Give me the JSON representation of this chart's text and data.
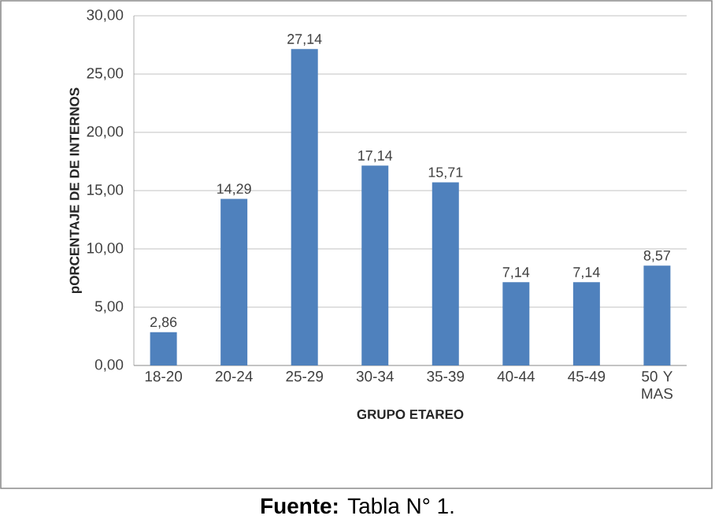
{
  "chart_data": {
    "type": "bar",
    "xlabel": "GRUPO ETAREO",
    "ylabel": "pORCENTAJE DE DE INTERNOS",
    "categories": [
      "18-20",
      "20-24",
      "25-29",
      "30-34",
      "35-39",
      "40-44",
      "45-49",
      "50 Y MAS"
    ],
    "values": [
      2.86,
      14.29,
      27.14,
      17.14,
      15.71,
      7.14,
      7.14,
      8.57
    ],
    "value_labels": [
      "2,86",
      "14,29",
      "27,14",
      "17,14",
      "15,71",
      "7,14",
      "7,14",
      "8,57"
    ],
    "color": "#4f81bd",
    "ylim": [
      0,
      30
    ],
    "yticks": [
      {
        "value": 0,
        "label": "0,00"
      },
      {
        "value": 5,
        "label": "5,00"
      },
      {
        "value": 10,
        "label": "10,00"
      },
      {
        "value": 15,
        "label": "15,00"
      },
      {
        "value": 20,
        "label": "20,00"
      },
      {
        "value": 25,
        "label": "25,00"
      },
      {
        "value": 30,
        "label": "30,00"
      }
    ],
    "grid": "y",
    "annotations": [
      "**Fuente:** Tabla N° 1."
    ]
  }
}
